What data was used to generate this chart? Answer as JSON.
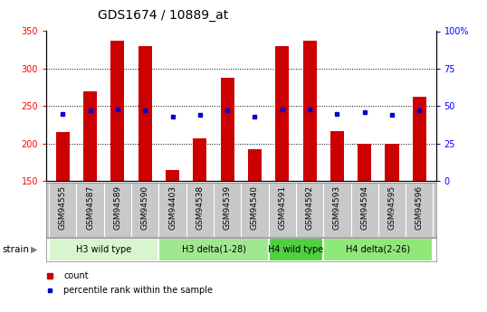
{
  "title": "GDS1674 / 10889_at",
  "samples": [
    "GSM94555",
    "GSM94587",
    "GSM94589",
    "GSM94590",
    "GSM94403",
    "GSM94538",
    "GSM94539",
    "GSM94540",
    "GSM94591",
    "GSM94592",
    "GSM94593",
    "GSM94594",
    "GSM94595",
    "GSM94596"
  ],
  "counts": [
    215,
    270,
    337,
    330,
    165,
    207,
    288,
    192,
    330,
    337,
    216,
    200,
    200,
    263
  ],
  "percentiles": [
    45,
    47,
    48,
    47,
    43,
    44,
    47,
    43,
    48,
    48,
    45,
    46,
    44,
    47
  ],
  "groups": [
    {
      "label": "H3 wild type",
      "start": 0,
      "end": 4,
      "color": "#d8f5d0"
    },
    {
      "label": "H3 delta(1-28)",
      "start": 4,
      "end": 8,
      "color": "#a0e890"
    },
    {
      "label": "H4 wild type",
      "start": 8,
      "end": 10,
      "color": "#50d040"
    },
    {
      "label": "H4 delta(2-26)",
      "start": 10,
      "end": 14,
      "color": "#90e878"
    }
  ],
  "ylim_left": [
    150,
    350
  ],
  "ylim_right": [
    0,
    100
  ],
  "yticks_left": [
    150,
    200,
    250,
    300,
    350
  ],
  "yticks_right": [
    0,
    25,
    50,
    75,
    100
  ],
  "bar_color": "#cc0000",
  "dot_color": "#0000cc",
  "bar_width": 0.5,
  "tick_bg_color": "#c8c8c8",
  "title_fontsize": 10,
  "tick_fontsize": 6.5,
  "group_fontsize": 7,
  "legend_fontsize": 7
}
